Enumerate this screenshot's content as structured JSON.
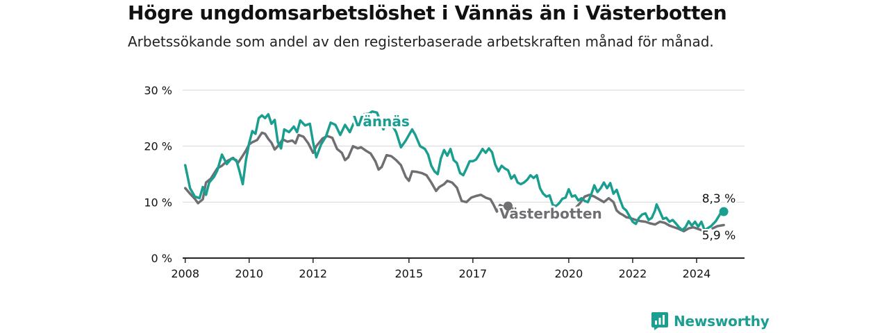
{
  "title": "Högre ungdomsarbetslöshet i Vännäs än i Västerbotten",
  "subtitle": "Arbetssökande som andel av den registerbaserade arbetskraften månad för månad.",
  "brand": "Newsworthy",
  "colors": {
    "vannas": "#1a9e8f",
    "vasterbotten": "#6f6f73",
    "grid": "#d6d6d6",
    "axis": "#222222",
    "label": "#111111"
  },
  "chart_data": {
    "type": "line",
    "title": "Högre ungdomsarbetslöshet i Vännäs än i Västerbotten",
    "subtitle": "Arbetssökande som andel av den registerbaserade arbetskraften månad för månad.",
    "xlim": [
      2007.92,
      2025.5
    ],
    "ylim": [
      0,
      30
    ],
    "y_ticks": [
      0,
      10,
      20,
      30
    ],
    "y_tick_labels": [
      "0 %",
      "10 %",
      "20 %",
      "30 %"
    ],
    "x_ticks": [
      2008,
      2010,
      2012,
      2015,
      2017,
      2020,
      2022,
      2024
    ],
    "x_tick_labels": [
      "2008",
      "2010",
      "2012",
      "2015",
      "2017",
      "2020",
      "2022",
      "2024"
    ],
    "grid": true,
    "series": [
      {
        "name": "Vännäs",
        "color": "#1a9e8f",
        "end_label": "8,3 %",
        "points": [
          [
            2008.0,
            16.6
          ],
          [
            2008.15,
            12.5
          ],
          [
            2008.3,
            11.0
          ],
          [
            2008.45,
            10.7
          ],
          [
            2008.55,
            12.7
          ],
          [
            2008.65,
            11.3
          ],
          [
            2008.75,
            13.5
          ],
          [
            2008.9,
            14.5
          ],
          [
            2009.0,
            15.6
          ],
          [
            2009.15,
            18.5
          ],
          [
            2009.3,
            16.8
          ],
          [
            2009.45,
            17.8
          ],
          [
            2009.6,
            17.5
          ],
          [
            2009.7,
            15.5
          ],
          [
            2009.8,
            13.2
          ],
          [
            2009.9,
            17.5
          ],
          [
            2010.0,
            20.5
          ],
          [
            2010.1,
            22.7
          ],
          [
            2010.2,
            22.2
          ],
          [
            2010.3,
            25.0
          ],
          [
            2010.4,
            25.5
          ],
          [
            2010.5,
            25.0
          ],
          [
            2010.6,
            25.7
          ],
          [
            2010.7,
            24.0
          ],
          [
            2010.8,
            24.7
          ],
          [
            2010.9,
            20.7
          ],
          [
            2011.0,
            19.6
          ],
          [
            2011.1,
            23.0
          ],
          [
            2011.25,
            22.5
          ],
          [
            2011.4,
            23.5
          ],
          [
            2011.5,
            22.5
          ],
          [
            2011.6,
            24.6
          ],
          [
            2011.75,
            23.7
          ],
          [
            2011.9,
            24.0
          ],
          [
            2012.0,
            20.7
          ],
          [
            2012.1,
            18.0
          ],
          [
            2012.25,
            20.3
          ],
          [
            2012.4,
            21.7
          ],
          [
            2012.55,
            24.2
          ],
          [
            2012.7,
            23.8
          ],
          [
            2012.85,
            22.0
          ],
          [
            2013.0,
            23.8
          ],
          [
            2013.15,
            22.5
          ],
          [
            2013.3,
            24.5
          ],
          [
            2013.45,
            23.5
          ],
          [
            2013.6,
            25.7
          ],
          [
            2013.75,
            25.8
          ],
          [
            2013.85,
            26.2
          ],
          [
            2014.0,
            26.0
          ],
          [
            2014.1,
            24.5
          ],
          [
            2014.2,
            23.0
          ],
          [
            2014.3,
            24.6
          ],
          [
            2014.4,
            24.0
          ],
          [
            2014.5,
            23.5
          ],
          [
            2014.6,
            22.5
          ],
          [
            2014.75,
            19.8
          ],
          [
            2014.9,
            21.0
          ],
          [
            2015.0,
            22.0
          ],
          [
            2015.1,
            23.0
          ],
          [
            2015.2,
            22.0
          ],
          [
            2015.35,
            20.0
          ],
          [
            2015.5,
            19.5
          ],
          [
            2015.6,
            18.5
          ],
          [
            2015.7,
            16.5
          ],
          [
            2015.8,
            15.5
          ],
          [
            2015.9,
            15.0
          ],
          [
            2016.0,
            17.8
          ],
          [
            2016.1,
            19.3
          ],
          [
            2016.2,
            18.3
          ],
          [
            2016.3,
            19.5
          ],
          [
            2016.4,
            17.5
          ],
          [
            2016.5,
            17.0
          ],
          [
            2016.6,
            15.2
          ],
          [
            2016.7,
            14.8
          ],
          [
            2016.8,
            16.0
          ],
          [
            2016.9,
            17.3
          ],
          [
            2017.0,
            17.3
          ],
          [
            2017.1,
            17.6
          ],
          [
            2017.2,
            18.5
          ],
          [
            2017.3,
            19.5
          ],
          [
            2017.4,
            18.8
          ],
          [
            2017.5,
            19.6
          ],
          [
            2017.6,
            18.9
          ],
          [
            2017.7,
            16.7
          ],
          [
            2017.8,
            15.5
          ],
          [
            2017.9,
            16.5
          ],
          [
            2018.0,
            16.0
          ],
          [
            2018.1,
            15.7
          ],
          [
            2018.2,
            14.2
          ],
          [
            2018.3,
            14.8
          ],
          [
            2018.4,
            13.5
          ],
          [
            2018.5,
            13.2
          ],
          [
            2018.6,
            13.5
          ],
          [
            2018.7,
            14.0
          ],
          [
            2018.8,
            14.8
          ],
          [
            2018.9,
            14.3
          ],
          [
            2019.0,
            14.8
          ],
          [
            2019.1,
            12.5
          ],
          [
            2019.2,
            11.5
          ],
          [
            2019.3,
            11.0
          ],
          [
            2019.4,
            11.2
          ],
          [
            2019.5,
            9.5
          ],
          [
            2019.6,
            9.3
          ],
          [
            2019.7,
            9.8
          ],
          [
            2019.8,
            10.6
          ],
          [
            2019.9,
            10.8
          ],
          [
            2020.0,
            12.3
          ],
          [
            2020.1,
            11.0
          ],
          [
            2020.2,
            11.2
          ],
          [
            2020.3,
            10.3
          ],
          [
            2020.4,
            10.7
          ],
          [
            2020.5,
            10.2
          ],
          [
            2020.6,
            10.0
          ],
          [
            2020.7,
            11.3
          ],
          [
            2020.8,
            13.0
          ],
          [
            2020.9,
            11.8
          ],
          [
            2021.0,
            12.5
          ],
          [
            2021.1,
            13.5
          ],
          [
            2021.2,
            12.5
          ],
          [
            2021.3,
            13.4
          ],
          [
            2021.4,
            11.5
          ],
          [
            2021.5,
            12.2
          ],
          [
            2021.6,
            10.5
          ],
          [
            2021.7,
            9.0
          ],
          [
            2021.8,
            8.5
          ],
          [
            2021.9,
            7.5
          ],
          [
            2022.0,
            6.5
          ],
          [
            2022.1,
            6.1
          ],
          [
            2022.2,
            7.2
          ],
          [
            2022.3,
            7.8
          ],
          [
            2022.4,
            8.0
          ],
          [
            2022.5,
            6.8
          ],
          [
            2022.6,
            7.2
          ],
          [
            2022.7,
            8.5
          ],
          [
            2022.75,
            9.6
          ],
          [
            2022.85,
            8.3
          ],
          [
            2022.95,
            7.0
          ],
          [
            2023.05,
            7.2
          ],
          [
            2023.15,
            6.5
          ],
          [
            2023.25,
            6.8
          ],
          [
            2023.35,
            6.2
          ],
          [
            2023.45,
            5.5
          ],
          [
            2023.55,
            5.0
          ],
          [
            2023.65,
            5.5
          ],
          [
            2023.75,
            6.6
          ],
          [
            2023.85,
            5.8
          ],
          [
            2023.95,
            6.5
          ],
          [
            2024.05,
            5.6
          ],
          [
            2024.15,
            6.5
          ],
          [
            2024.25,
            5.0
          ],
          [
            2024.45,
            5.7
          ],
          [
            2024.6,
            6.6
          ],
          [
            2024.75,
            8.0
          ],
          [
            2024.85,
            8.3
          ]
        ]
      },
      {
        "name": "Västerbotten",
        "color": "#6f6f73",
        "end_label": "5,9 %",
        "points": [
          [
            2008.0,
            12.5
          ],
          [
            2008.15,
            11.5
          ],
          [
            2008.3,
            10.6
          ],
          [
            2008.4,
            9.8
          ],
          [
            2008.55,
            10.5
          ],
          [
            2008.65,
            13.5
          ],
          [
            2008.8,
            14.2
          ],
          [
            2009.0,
            16.0
          ],
          [
            2009.15,
            16.5
          ],
          [
            2009.3,
            17.3
          ],
          [
            2009.5,
            17.9
          ],
          [
            2009.65,
            17.0
          ],
          [
            2009.8,
            18.3
          ],
          [
            2009.9,
            19.2
          ],
          [
            2010.0,
            20.3
          ],
          [
            2010.1,
            20.7
          ],
          [
            2010.25,
            21.1
          ],
          [
            2010.4,
            22.4
          ],
          [
            2010.5,
            22.2
          ],
          [
            2010.6,
            21.3
          ],
          [
            2010.7,
            20.6
          ],
          [
            2010.8,
            19.4
          ],
          [
            2010.9,
            20.0
          ],
          [
            2011.05,
            21.2
          ],
          [
            2011.2,
            20.8
          ],
          [
            2011.35,
            21.0
          ],
          [
            2011.45,
            20.5
          ],
          [
            2011.55,
            22.0
          ],
          [
            2011.7,
            21.7
          ],
          [
            2011.85,
            20.5
          ],
          [
            2012.0,
            18.8
          ],
          [
            2012.1,
            20.0
          ],
          [
            2012.3,
            21.4
          ],
          [
            2012.45,
            21.8
          ],
          [
            2012.6,
            21.5
          ],
          [
            2012.75,
            19.5
          ],
          [
            2012.9,
            18.8
          ],
          [
            2013.0,
            17.5
          ],
          [
            2013.1,
            18.0
          ],
          [
            2013.25,
            20.0
          ],
          [
            2013.4,
            19.6
          ],
          [
            2013.5,
            19.8
          ],
          [
            2013.65,
            19.2
          ],
          [
            2013.8,
            18.7
          ],
          [
            2013.95,
            17.3
          ],
          [
            2014.05,
            15.8
          ],
          [
            2014.15,
            16.3
          ],
          [
            2014.3,
            18.4
          ],
          [
            2014.45,
            18.2
          ],
          [
            2014.6,
            17.5
          ],
          [
            2014.75,
            16.6
          ],
          [
            2014.9,
            14.5
          ],
          [
            2015.0,
            13.8
          ],
          [
            2015.1,
            15.5
          ],
          [
            2015.25,
            15.4
          ],
          [
            2015.4,
            15.2
          ],
          [
            2015.55,
            14.8
          ],
          [
            2015.7,
            13.5
          ],
          [
            2015.85,
            12.0
          ],
          [
            2015.95,
            12.7
          ],
          [
            2016.1,
            13.2
          ],
          [
            2016.2,
            13.8
          ],
          [
            2016.35,
            13.5
          ],
          [
            2016.5,
            12.6
          ],
          [
            2016.65,
            10.2
          ],
          [
            2016.8,
            10.0
          ],
          [
            2016.95,
            10.8
          ],
          [
            2017.1,
            11.1
          ],
          [
            2017.25,
            11.3
          ],
          [
            2017.4,
            10.8
          ],
          [
            2017.55,
            10.5
          ],
          [
            2017.65,
            9.5
          ],
          [
            2017.75,
            8.3
          ],
          [
            2017.85,
            9.5
          ],
          [
            2017.95,
            9.2
          ],
          [
            2018.1,
            9.3
          ]
        ]
      },
      {
        "name": "Västerbotten",
        "color": "#6f6f73",
        "points": [
          [
            2020.25,
            9.2
          ],
          [
            2020.35,
            9.8
          ],
          [
            2020.5,
            11.0
          ],
          [
            2020.65,
            11.3
          ],
          [
            2020.8,
            11.0
          ],
          [
            2020.95,
            10.5
          ],
          [
            2021.1,
            10.0
          ],
          [
            2021.25,
            10.7
          ],
          [
            2021.4,
            10.0
          ],
          [
            2021.5,
            8.5
          ],
          [
            2021.6,
            8.0
          ],
          [
            2021.7,
            7.7
          ],
          [
            2021.8,
            7.3
          ],
          [
            2021.9,
            7.2
          ],
          [
            2022.0,
            7.0
          ],
          [
            2022.1,
            6.8
          ],
          [
            2022.25,
            6.6
          ],
          [
            2022.4,
            6.5
          ],
          [
            2022.55,
            6.2
          ],
          [
            2022.7,
            6.0
          ],
          [
            2022.85,
            6.5
          ],
          [
            2023.0,
            6.3
          ],
          [
            2023.15,
            5.8
          ],
          [
            2023.3,
            5.5
          ],
          [
            2023.45,
            5.2
          ],
          [
            2023.6,
            4.8
          ],
          [
            2023.75,
            5.3
          ],
          [
            2023.9,
            5.5
          ],
          [
            2024.05,
            5.2
          ],
          [
            2024.2,
            4.9
          ],
          [
            2024.35,
            4.7
          ]
        ]
      },
      {
        "name": "Västerbotten",
        "color": "#6f6f73",
        "points": [
          [
            2024.5,
            5.3
          ],
          [
            2024.65,
            5.7
          ],
          [
            2024.85,
            5.9
          ]
        ]
      }
    ]
  }
}
